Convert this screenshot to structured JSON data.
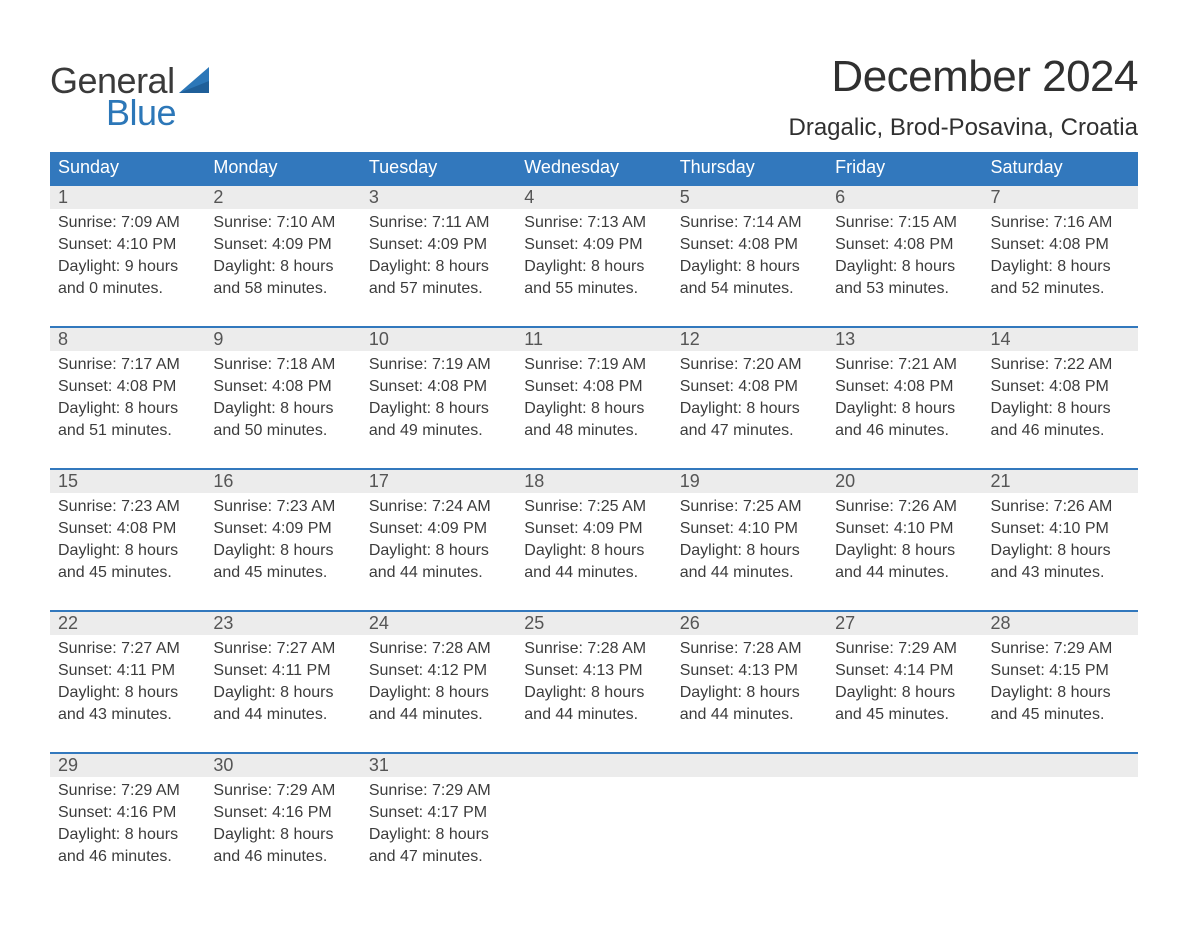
{
  "brand": {
    "word1": "General",
    "word2": "Blue",
    "sail_color": "#2c77b8"
  },
  "title": "December 2024",
  "location": "Dragalic, Brod-Posavina, Croatia",
  "colors": {
    "header_bg": "#3278bd",
    "header_text": "#ffffff",
    "week_rule": "#3278bd",
    "daynum_bg": "#ececec",
    "daynum_text": "#555555",
    "body_text": "#3c3c3c"
  },
  "day_labels": [
    "Sunday",
    "Monday",
    "Tuesday",
    "Wednesday",
    "Thursday",
    "Friday",
    "Saturday"
  ],
  "weeks": [
    [
      {
        "n": "1",
        "sunrise": "Sunrise: 7:09 AM",
        "sunset": "Sunset: 4:10 PM",
        "dl1": "Daylight: 9 hours",
        "dl2": "and 0 minutes."
      },
      {
        "n": "2",
        "sunrise": "Sunrise: 7:10 AM",
        "sunset": "Sunset: 4:09 PM",
        "dl1": "Daylight: 8 hours",
        "dl2": "and 58 minutes."
      },
      {
        "n": "3",
        "sunrise": "Sunrise: 7:11 AM",
        "sunset": "Sunset: 4:09 PM",
        "dl1": "Daylight: 8 hours",
        "dl2": "and 57 minutes."
      },
      {
        "n": "4",
        "sunrise": "Sunrise: 7:13 AM",
        "sunset": "Sunset: 4:09 PM",
        "dl1": "Daylight: 8 hours",
        "dl2": "and 55 minutes."
      },
      {
        "n": "5",
        "sunrise": "Sunrise: 7:14 AM",
        "sunset": "Sunset: 4:08 PM",
        "dl1": "Daylight: 8 hours",
        "dl2": "and 54 minutes."
      },
      {
        "n": "6",
        "sunrise": "Sunrise: 7:15 AM",
        "sunset": "Sunset: 4:08 PM",
        "dl1": "Daylight: 8 hours",
        "dl2": "and 53 minutes."
      },
      {
        "n": "7",
        "sunrise": "Sunrise: 7:16 AM",
        "sunset": "Sunset: 4:08 PM",
        "dl1": "Daylight: 8 hours",
        "dl2": "and 52 minutes."
      }
    ],
    [
      {
        "n": "8",
        "sunrise": "Sunrise: 7:17 AM",
        "sunset": "Sunset: 4:08 PM",
        "dl1": "Daylight: 8 hours",
        "dl2": "and 51 minutes."
      },
      {
        "n": "9",
        "sunrise": "Sunrise: 7:18 AM",
        "sunset": "Sunset: 4:08 PM",
        "dl1": "Daylight: 8 hours",
        "dl2": "and 50 minutes."
      },
      {
        "n": "10",
        "sunrise": "Sunrise: 7:19 AM",
        "sunset": "Sunset: 4:08 PM",
        "dl1": "Daylight: 8 hours",
        "dl2": "and 49 minutes."
      },
      {
        "n": "11",
        "sunrise": "Sunrise: 7:19 AM",
        "sunset": "Sunset: 4:08 PM",
        "dl1": "Daylight: 8 hours",
        "dl2": "and 48 minutes."
      },
      {
        "n": "12",
        "sunrise": "Sunrise: 7:20 AM",
        "sunset": "Sunset: 4:08 PM",
        "dl1": "Daylight: 8 hours",
        "dl2": "and 47 minutes."
      },
      {
        "n": "13",
        "sunrise": "Sunrise: 7:21 AM",
        "sunset": "Sunset: 4:08 PM",
        "dl1": "Daylight: 8 hours",
        "dl2": "and 46 minutes."
      },
      {
        "n": "14",
        "sunrise": "Sunrise: 7:22 AM",
        "sunset": "Sunset: 4:08 PM",
        "dl1": "Daylight: 8 hours",
        "dl2": "and 46 minutes."
      }
    ],
    [
      {
        "n": "15",
        "sunrise": "Sunrise: 7:23 AM",
        "sunset": "Sunset: 4:08 PM",
        "dl1": "Daylight: 8 hours",
        "dl2": "and 45 minutes."
      },
      {
        "n": "16",
        "sunrise": "Sunrise: 7:23 AM",
        "sunset": "Sunset: 4:09 PM",
        "dl1": "Daylight: 8 hours",
        "dl2": "and 45 minutes."
      },
      {
        "n": "17",
        "sunrise": "Sunrise: 7:24 AM",
        "sunset": "Sunset: 4:09 PM",
        "dl1": "Daylight: 8 hours",
        "dl2": "and 44 minutes."
      },
      {
        "n": "18",
        "sunrise": "Sunrise: 7:25 AM",
        "sunset": "Sunset: 4:09 PM",
        "dl1": "Daylight: 8 hours",
        "dl2": "and 44 minutes."
      },
      {
        "n": "19",
        "sunrise": "Sunrise: 7:25 AM",
        "sunset": "Sunset: 4:10 PM",
        "dl1": "Daylight: 8 hours",
        "dl2": "and 44 minutes."
      },
      {
        "n": "20",
        "sunrise": "Sunrise: 7:26 AM",
        "sunset": "Sunset: 4:10 PM",
        "dl1": "Daylight: 8 hours",
        "dl2": "and 44 minutes."
      },
      {
        "n": "21",
        "sunrise": "Sunrise: 7:26 AM",
        "sunset": "Sunset: 4:10 PM",
        "dl1": "Daylight: 8 hours",
        "dl2": "and 43 minutes."
      }
    ],
    [
      {
        "n": "22",
        "sunrise": "Sunrise: 7:27 AM",
        "sunset": "Sunset: 4:11 PM",
        "dl1": "Daylight: 8 hours",
        "dl2": "and 43 minutes."
      },
      {
        "n": "23",
        "sunrise": "Sunrise: 7:27 AM",
        "sunset": "Sunset: 4:11 PM",
        "dl1": "Daylight: 8 hours",
        "dl2": "and 44 minutes."
      },
      {
        "n": "24",
        "sunrise": "Sunrise: 7:28 AM",
        "sunset": "Sunset: 4:12 PM",
        "dl1": "Daylight: 8 hours",
        "dl2": "and 44 minutes."
      },
      {
        "n": "25",
        "sunrise": "Sunrise: 7:28 AM",
        "sunset": "Sunset: 4:13 PM",
        "dl1": "Daylight: 8 hours",
        "dl2": "and 44 minutes."
      },
      {
        "n": "26",
        "sunrise": "Sunrise: 7:28 AM",
        "sunset": "Sunset: 4:13 PM",
        "dl1": "Daylight: 8 hours",
        "dl2": "and 44 minutes."
      },
      {
        "n": "27",
        "sunrise": "Sunrise: 7:29 AM",
        "sunset": "Sunset: 4:14 PM",
        "dl1": "Daylight: 8 hours",
        "dl2": "and 45 minutes."
      },
      {
        "n": "28",
        "sunrise": "Sunrise: 7:29 AM",
        "sunset": "Sunset: 4:15 PM",
        "dl1": "Daylight: 8 hours",
        "dl2": "and 45 minutes."
      }
    ],
    [
      {
        "n": "29",
        "sunrise": "Sunrise: 7:29 AM",
        "sunset": "Sunset: 4:16 PM",
        "dl1": "Daylight: 8 hours",
        "dl2": "and 46 minutes."
      },
      {
        "n": "30",
        "sunrise": "Sunrise: 7:29 AM",
        "sunset": "Sunset: 4:16 PM",
        "dl1": "Daylight: 8 hours",
        "dl2": "and 46 minutes."
      },
      {
        "n": "31",
        "sunrise": "Sunrise: 7:29 AM",
        "sunset": "Sunset: 4:17 PM",
        "dl1": "Daylight: 8 hours",
        "dl2": "and 47 minutes."
      },
      null,
      null,
      null,
      null
    ]
  ]
}
